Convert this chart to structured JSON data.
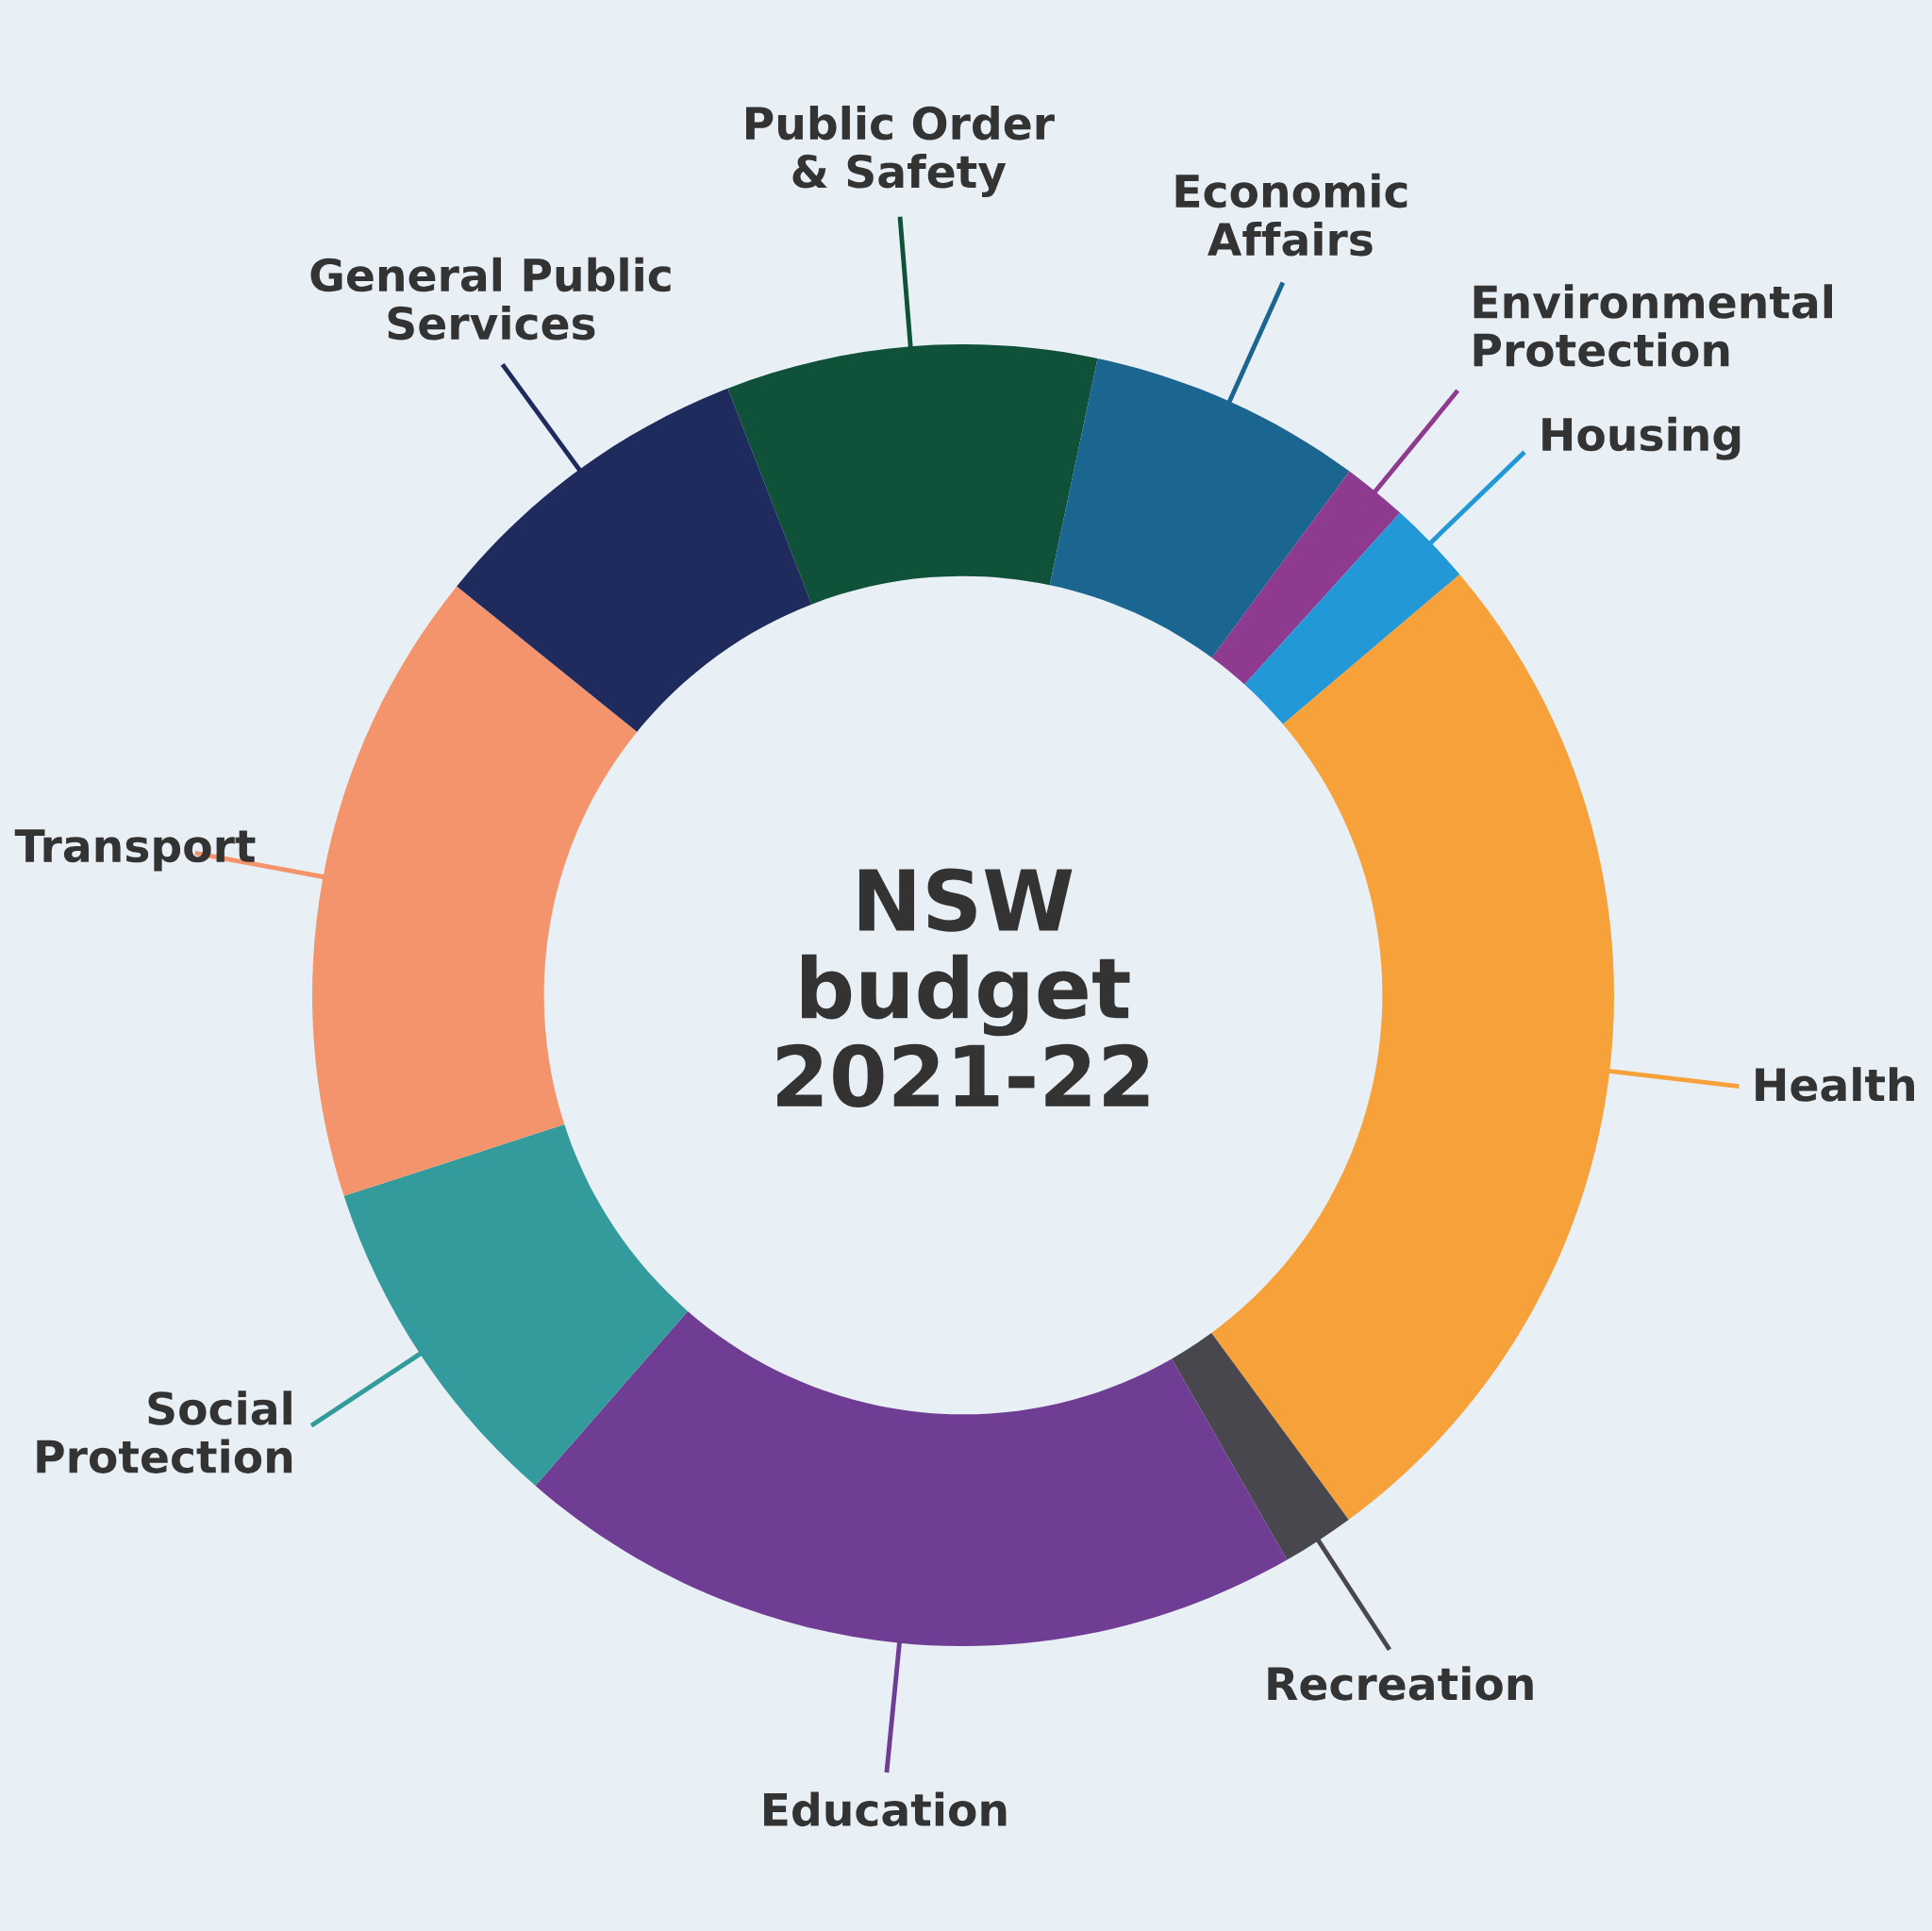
{
  "chart_data": {
    "type": "donut",
    "title": "NSW\nbudget\n2021-22",
    "categories": [
      "Public Order\n& Safety",
      "Economic\nAffairs",
      "Environmental\nProtection",
      "Housing",
      "Health",
      "Recreation",
      "Education",
      "Social\nProtection",
      "Transport",
      "General Public\nServices"
    ],
    "values": [
      9.2,
      6.8,
      1.6,
      2.1,
      26.1,
      1.8,
      19.7,
      8.6,
      15.8,
      8.3
    ],
    "colors": [
      "#10513a",
      "#1b6690",
      "#8e3a8e",
      "#2298d6",
      "#f7a13b",
      "#48474d",
      "#6f3d93",
      "#339b9b",
      "#f4946c",
      "#1f2b5c"
    ],
    "legend": false
  }
}
